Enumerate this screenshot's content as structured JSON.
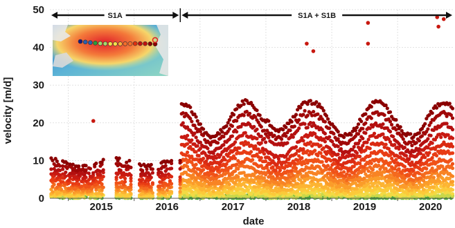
{
  "chart_data": {
    "type": "scatter",
    "xlabel": "date",
    "ylabel": "velocity [m/d]",
    "xlim": [
      2014.72,
      2020.85
    ],
    "ylim": [
      0,
      50
    ],
    "yticks": [
      0,
      10,
      20,
      30,
      40,
      50
    ],
    "xticks": [
      {
        "label": "2015",
        "value": 2015.0
      },
      {
        "label": "2016",
        "value": 2016.0
      },
      {
        "label": "2017",
        "value": 2017.0
      },
      {
        "label": "2018",
        "value": 2018.0
      },
      {
        "label": "2019",
        "value": 2019.0
      },
      {
        "label": "2020",
        "value": 2020.0
      }
    ],
    "grid": true,
    "periods": [
      {
        "label": "S1A",
        "from": 2014.72,
        "to": 2016.7
      },
      {
        "label": "S1A + S1B",
        "from": 2016.7,
        "to": 2020.85
      }
    ],
    "gaps": [
      [
        2015.55,
        2015.72
      ],
      [
        2015.95,
        2016.07
      ],
      [
        2016.28,
        2016.35
      ],
      [
        2016.58,
        2016.68
      ]
    ],
    "series_note_colors": [
      "#8b0000",
      "#c01010",
      "#e03010",
      "#f46d2a",
      "#fdae3a",
      "#f5e04a",
      "#a6d96a",
      "#2a9d3a",
      "#2b5fb0",
      "#1a1a80"
    ],
    "series": [
      {
        "base": 21.0,
        "amp": 4.5,
        "color": "#8b0000"
      },
      {
        "base": 18.5,
        "amp": 4.0,
        "color": "#a00808"
      },
      {
        "base": 16.0,
        "amp": 3.5,
        "color": "#b41010"
      },
      {
        "base": 13.8,
        "amp": 3.0,
        "color": "#c81a12"
      },
      {
        "base": 11.8,
        "amp": 2.6,
        "color": "#da2a12"
      },
      {
        "base": 10.0,
        "amp": 2.2,
        "color": "#e83c14"
      },
      {
        "base": 8.3,
        "amp": 1.8,
        "color": "#f05218"
      },
      {
        "base": 6.8,
        "amp": 1.5,
        "color": "#f46a1e"
      },
      {
        "base": 5.4,
        "amp": 1.2,
        "color": "#f88424"
      },
      {
        "base": 4.2,
        "amp": 0.9,
        "color": "#fb9c2a"
      },
      {
        "base": 3.1,
        "amp": 0.7,
        "color": "#fdb432"
      },
      {
        "base": 2.1,
        "amp": 0.5,
        "color": "#fcc93a"
      },
      {
        "base": 1.3,
        "amp": 0.3,
        "color": "#f3da44"
      },
      {
        "base": 0.6,
        "amp": 0.15,
        "color": "#c9d84a"
      },
      {
        "base": 0.15,
        "amp": 0.05,
        "color": "#4aa83a"
      }
    ],
    "outliers": [
      {
        "x": 2015.38,
        "y": 20.5
      },
      {
        "x": 2018.62,
        "y": 41.0
      },
      {
        "x": 2018.72,
        "y": 39.0
      },
      {
        "x": 2019.55,
        "y": 46.5
      },
      {
        "x": 2019.55,
        "y": 41.0
      },
      {
        "x": 2020.6,
        "y": 48.0
      },
      {
        "x": 2020.62,
        "y": 45.5
      },
      {
        "x": 2020.7,
        "y": 47.5
      }
    ]
  },
  "inset": {
    "description_icon": "velocity-map-inset"
  }
}
